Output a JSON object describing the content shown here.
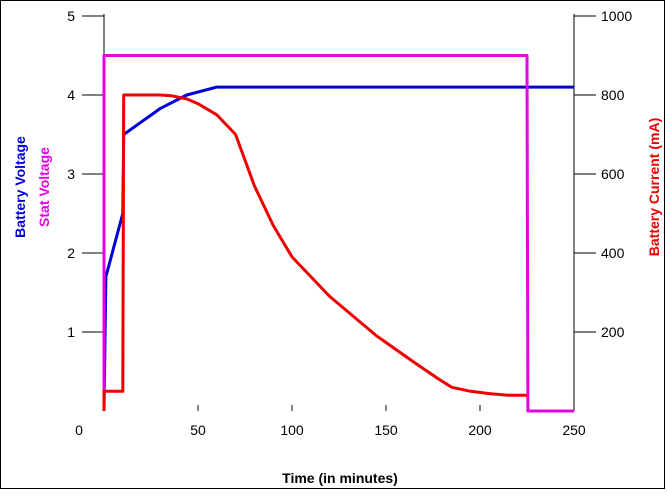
{
  "chart_data": {
    "type": "line",
    "xlabel": "Time (in minutes)",
    "ylabel_left": [
      "Battery Voltage",
      "Stat Voltage"
    ],
    "ylabel_right": "Battery Current (mA)",
    "xlim": [
      0,
      250
    ],
    "ylim_left": [
      0,
      5
    ],
    "ylim_right": [
      0,
      1000
    ],
    "x_ticks": [
      "0",
      "50",
      "100",
      "150",
      "200",
      "250"
    ],
    "y_left_ticks": [
      "1",
      "2",
      "3",
      "4",
      "5"
    ],
    "y_right_ticks": [
      "200",
      "400",
      "600",
      "800",
      "1000"
    ],
    "grid": false,
    "colors": {
      "battery_voltage": "#0000dd",
      "stat_voltage": "#e600e6",
      "battery_current": "#ee0000"
    },
    "series": [
      {
        "axis": "left",
        "color": "#0000dd",
        "x": [
          0,
          1,
          10,
          10.5,
          30,
          44,
          60,
          100,
          150,
          200,
          225,
          250
        ],
        "y": [
          0,
          1.7,
          2.5,
          3.5,
          3.83,
          4.0,
          4.1,
          4.1,
          4.1,
          4.1,
          4.1,
          4.1
        ]
      },
      {
        "axis": "left",
        "color": "#e600e6",
        "x": [
          0,
          0,
          225,
          225.5,
          250
        ],
        "y": [
          0,
          4.5,
          4.5,
          0,
          0
        ]
      },
      {
        "axis": "right",
        "color": "#ee0000",
        "x": [
          0,
          0,
          10,
          10.5,
          30,
          36,
          44,
          50,
          60,
          70,
          80,
          90,
          100,
          120,
          145,
          165,
          178,
          185,
          195,
          205,
          215,
          225
        ],
        "y": [
          0,
          50,
          50,
          800,
          800,
          798,
          790,
          778,
          750,
          700,
          570,
          470,
          390,
          290,
          190,
          123,
          81,
          60,
          50,
          44,
          40,
          40
        ]
      }
    ]
  }
}
